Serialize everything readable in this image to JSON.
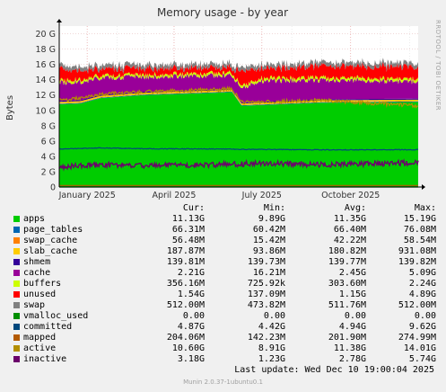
{
  "title": "Memory usage - by year",
  "ylabel": "Bytes",
  "side_credit": "RRDTOOL / TOBI OETIKER",
  "footer": {
    "last_update": "Last update: Wed Dec 10 19:00:04 2025",
    "version": "Munin 2.0.37-1ubuntu0.1"
  },
  "legend": {
    "headers": [
      "Cur:",
      "Min:",
      "Avg:",
      "Max:"
    ],
    "rows": [
      {
        "name": "apps",
        "color": "#00cc00",
        "cur": "11.13G",
        "min": "9.89G",
        "avg": "11.35G",
        "max": "15.19G"
      },
      {
        "name": "page_tables",
        "color": "#0066b3",
        "cur": "66.31M",
        "min": "60.42M",
        "avg": "66.40M",
        "max": "76.08M"
      },
      {
        "name": "swap_cache",
        "color": "#ff8000",
        "cur": "56.48M",
        "min": "15.42M",
        "avg": "42.22M",
        "max": "58.54M"
      },
      {
        "name": "slab_cache",
        "color": "#ffcc00",
        "cur": "187.87M",
        "min": "93.86M",
        "avg": "180.82M",
        "max": "931.08M"
      },
      {
        "name": "shmem",
        "color": "#330099",
        "cur": "139.81M",
        "min": "139.73M",
        "avg": "139.77M",
        "max": "139.82M"
      },
      {
        "name": "cache",
        "color": "#990099",
        "cur": "2.21G",
        "min": "16.21M",
        "avg": "2.45G",
        "max": "5.09G"
      },
      {
        "name": "buffers",
        "color": "#ccff00",
        "cur": "356.16M",
        "min": "725.92k",
        "avg": "303.60M",
        "max": "2.24G"
      },
      {
        "name": "unused",
        "color": "#ff0000",
        "cur": "1.54G",
        "min": "137.09M",
        "avg": "1.15G",
        "max": "4.89G"
      },
      {
        "name": "swap",
        "color": "#808080",
        "cur": "512.00M",
        "min": "473.82M",
        "avg": "511.76M",
        "max": "512.00M"
      },
      {
        "name": "vmalloc_used",
        "color": "#008f00",
        "cur": "0.00",
        "min": "0.00",
        "avg": "0.00",
        "max": "0.00"
      },
      {
        "name": "committed",
        "color": "#00487d",
        "cur": "4.87G",
        "min": "4.42G",
        "avg": "4.94G",
        "max": "9.62G"
      },
      {
        "name": "mapped",
        "color": "#b35a00",
        "cur": "204.06M",
        "min": "142.23M",
        "avg": "201.90M",
        "max": "274.99M"
      },
      {
        "name": "active",
        "color": "#b38f00",
        "cur": "10.60G",
        "min": "8.91G",
        "avg": "11.38G",
        "max": "14.01G"
      },
      {
        "name": "inactive",
        "color": "#6b006b",
        "cur": "3.18G",
        "min": "1.23G",
        "avg": "2.78G",
        "max": "5.74G"
      }
    ]
  },
  "chart_data": {
    "type": "area",
    "title": "Memory usage - by year",
    "ylabel": "Bytes",
    "ylim": [
      0,
      21
    ],
    "unit": "G",
    "y_ticks": [
      0,
      2,
      4,
      6,
      8,
      10,
      12,
      14,
      16,
      18,
      20
    ],
    "y_tick_labels": [
      "0",
      "2 G",
      "4 G",
      "6 G",
      "8 G",
      "10 G",
      "12 G",
      "14 G",
      "16 G",
      "18 G",
      "20 G"
    ],
    "x_range": [
      "2024-12-03",
      "2025-12-10"
    ],
    "x_ticks": [
      {
        "date": "2025-01-01",
        "label": "January 2025"
      },
      {
        "date": "2025-04-01",
        "label": "April 2025"
      },
      {
        "date": "2025-07-01",
        "label": "July 2025"
      },
      {
        "date": "2025-10-01",
        "label": "October 2025"
      }
    ],
    "grid": true,
    "stacked_series": [
      {
        "name": "apps",
        "color": "#00cc00",
        "x": [
          "2024-12-03",
          "2024-12-25",
          "2025-01-15",
          "2025-03-01",
          "2025-05-15",
          "2025-05-31",
          "2025-06-10",
          "2025-07-01",
          "2025-09-01",
          "2025-12-10"
        ],
        "values": [
          10.8,
          10.9,
          11.6,
          12.0,
          12.3,
          12.4,
          10.6,
          10.7,
          11.0,
          11.1
        ]
      },
      {
        "name": "page_tables",
        "color": "#0066b3",
        "x": [
          "2024-12-03",
          "2025-12-10"
        ],
        "values": [
          0.07,
          0.07
        ]
      },
      {
        "name": "swap_cache",
        "color": "#ff8000",
        "x": [
          "2024-12-03",
          "2025-12-10"
        ],
        "values": [
          0.05,
          0.05
        ]
      },
      {
        "name": "slab_cache",
        "color": "#ffcc00",
        "x": [
          "2024-12-03",
          "2025-12-10"
        ],
        "values": [
          0.18,
          0.18
        ]
      },
      {
        "name": "shmem",
        "color": "#330099",
        "x": [
          "2024-12-03",
          "2025-12-10"
        ],
        "values": [
          0.14,
          0.14
        ]
      },
      {
        "name": "cache",
        "color": "#990099",
        "x": [
          "2024-12-03",
          "2025-01-15",
          "2025-03-01",
          "2025-05-15",
          "2025-05-31",
          "2025-06-10",
          "2025-07-01",
          "2025-09-01",
          "2025-12-10"
        ],
        "values": [
          2.4,
          2.2,
          1.9,
          1.8,
          1.7,
          1.9,
          2.7,
          2.5,
          2.2
        ]
      },
      {
        "name": "buffers",
        "color": "#ccff00",
        "x": [
          "2024-12-03",
          "2025-12-10"
        ],
        "values": [
          0.3,
          0.35
        ]
      },
      {
        "name": "unused",
        "color": "#ff0000",
        "x": [
          "2024-12-03",
          "2025-01-15",
          "2025-03-01",
          "2025-05-15",
          "2025-05-31",
          "2025-06-10",
          "2025-07-01",
          "2025-09-01",
          "2025-12-10"
        ],
        "values": [
          1.5,
          0.9,
          0.8,
          0.7,
          0.7,
          1.8,
          1.3,
          1.5,
          1.54
        ]
      },
      {
        "name": "swap",
        "color": "#808080",
        "x": [
          "2024-12-03",
          "2025-12-10"
        ],
        "values": [
          0.5,
          0.5
        ]
      }
    ],
    "line_series": [
      {
        "name": "vmalloc_used",
        "color": "#008f00",
        "x": [
          "2024-12-03",
          "2025-12-10"
        ],
        "values": [
          0,
          0
        ]
      },
      {
        "name": "committed",
        "color": "#00487d",
        "x": [
          "2024-12-03",
          "2025-01-15",
          "2025-03-01",
          "2025-05-15",
          "2025-07-01",
          "2025-09-01",
          "2025-12-10"
        ],
        "values": [
          4.95,
          5.1,
          5.0,
          4.95,
          4.9,
          4.85,
          4.87
        ]
      },
      {
        "name": "mapped",
        "color": "#b35a00",
        "x": [
          "2024-12-03",
          "2025-12-10"
        ],
        "values": [
          0.2,
          0.2
        ]
      },
      {
        "name": "active",
        "color": "#b38f00",
        "x": [
          "2024-12-03",
          "2024-12-25",
          "2025-01-15",
          "2025-03-01",
          "2025-05-15",
          "2025-05-31",
          "2025-06-10",
          "2025-07-01",
          "2025-09-01",
          "2025-12-10"
        ],
        "values": [
          11.3,
          11.6,
          12.1,
          12.4,
          12.7,
          12.8,
          11.0,
          11.1,
          11.3,
          10.6
        ]
      },
      {
        "name": "inactive",
        "color": "#6b006b",
        "x": [
          "2024-12-03",
          "2025-01-15",
          "2025-03-01",
          "2025-05-15",
          "2025-07-01",
          "2025-09-01",
          "2025-12-10"
        ],
        "values": [
          2.6,
          2.9,
          2.8,
          2.9,
          3.1,
          2.9,
          3.18
        ]
      }
    ]
  }
}
